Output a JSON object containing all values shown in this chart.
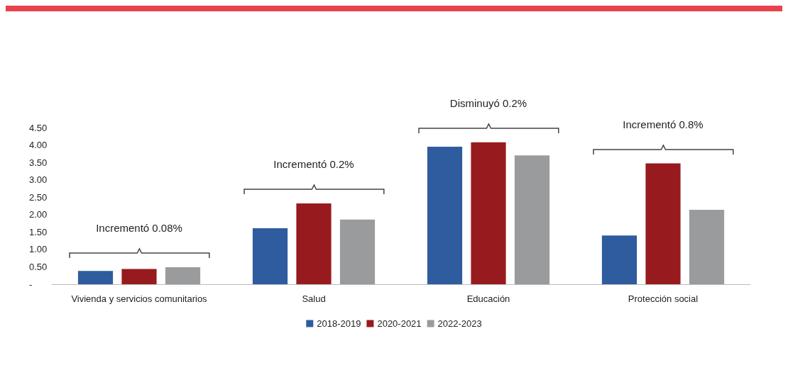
{
  "chart_data": {
    "type": "bar",
    "categories": [
      "Vivienda y servicios comunitarios",
      "Salud",
      "Educación",
      "Protección social"
    ],
    "series": [
      {
        "name": "2018-2019",
        "color": "#2e5c9e",
        "values": [
          0.38,
          1.61,
          3.95,
          1.4
        ]
      },
      {
        "name": "2020-2021",
        "color": "#971b1e",
        "values": [
          0.44,
          2.32,
          4.08,
          3.47
        ]
      },
      {
        "name": "2022-2023",
        "color": "#9a9b9d",
        "values": [
          0.49,
          1.86,
          3.7,
          2.14
        ]
      }
    ],
    "ylim": [
      0,
      4.5
    ],
    "yticks": [
      {
        "value": 0,
        "label": "-"
      },
      {
        "value": 0.5,
        "label": "0.50"
      },
      {
        "value": 1,
        "label": "1.00"
      },
      {
        "value": 1.5,
        "label": "1.50"
      },
      {
        "value": 2,
        "label": "2.00"
      },
      {
        "value": 2.5,
        "label": "2.50"
      },
      {
        "value": 3,
        "label": "3.00"
      },
      {
        "value": 3.5,
        "label": "3.50"
      },
      {
        "value": 4,
        "label": "4.00"
      },
      {
        "value": 4.5,
        "label": "4.50"
      }
    ],
    "annotations": [
      "Incrementó 0.08%",
      "Incrementó 0.2%",
      "Disminuyó 0.2%",
      "Incrementó 0.8%"
    ],
    "grid": false,
    "legend": "bottom"
  }
}
